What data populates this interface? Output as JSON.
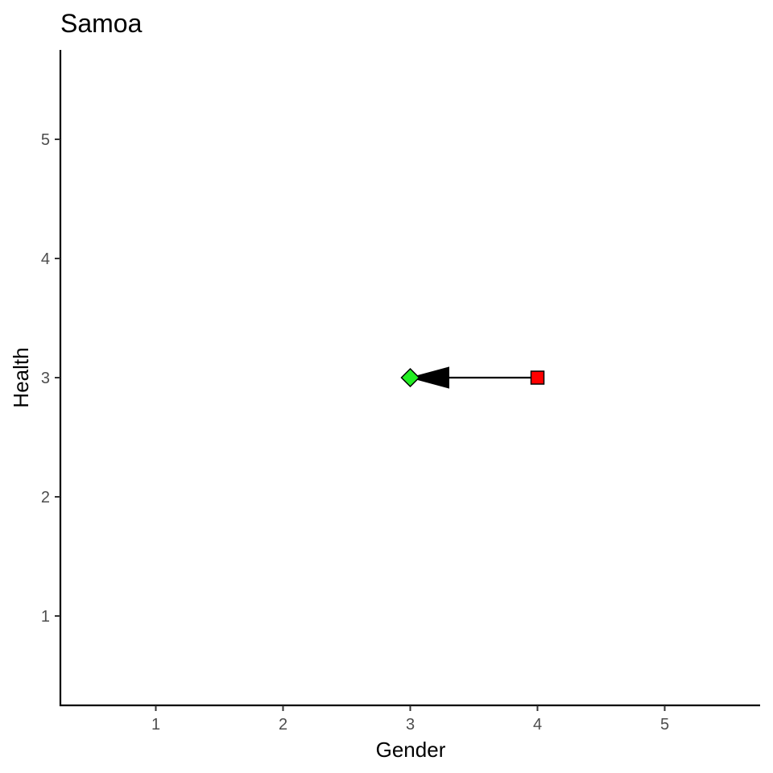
{
  "chart_data": {
    "type": "scatter",
    "title": "Samoa",
    "xlabel": "Gender",
    "ylabel": "Health",
    "xlim": [
      0.25,
      5.75
    ],
    "ylim": [
      0.25,
      5.75
    ],
    "xticks": [
      "1",
      "2",
      "3",
      "4",
      "5"
    ],
    "yticks": [
      "1",
      "2",
      "3",
      "4",
      "5"
    ],
    "grid": false,
    "legend": "none",
    "points": [
      {
        "x": 4,
        "y": 3,
        "shape": "square",
        "color": "#ff0000"
      },
      {
        "x": 3,
        "y": 3,
        "shape": "diamond",
        "color": "#22ee22"
      }
    ],
    "arrow": {
      "from": {
        "x": 4,
        "y": 3
      },
      "to": {
        "x": 3,
        "y": 3
      },
      "color": "#000000"
    }
  }
}
